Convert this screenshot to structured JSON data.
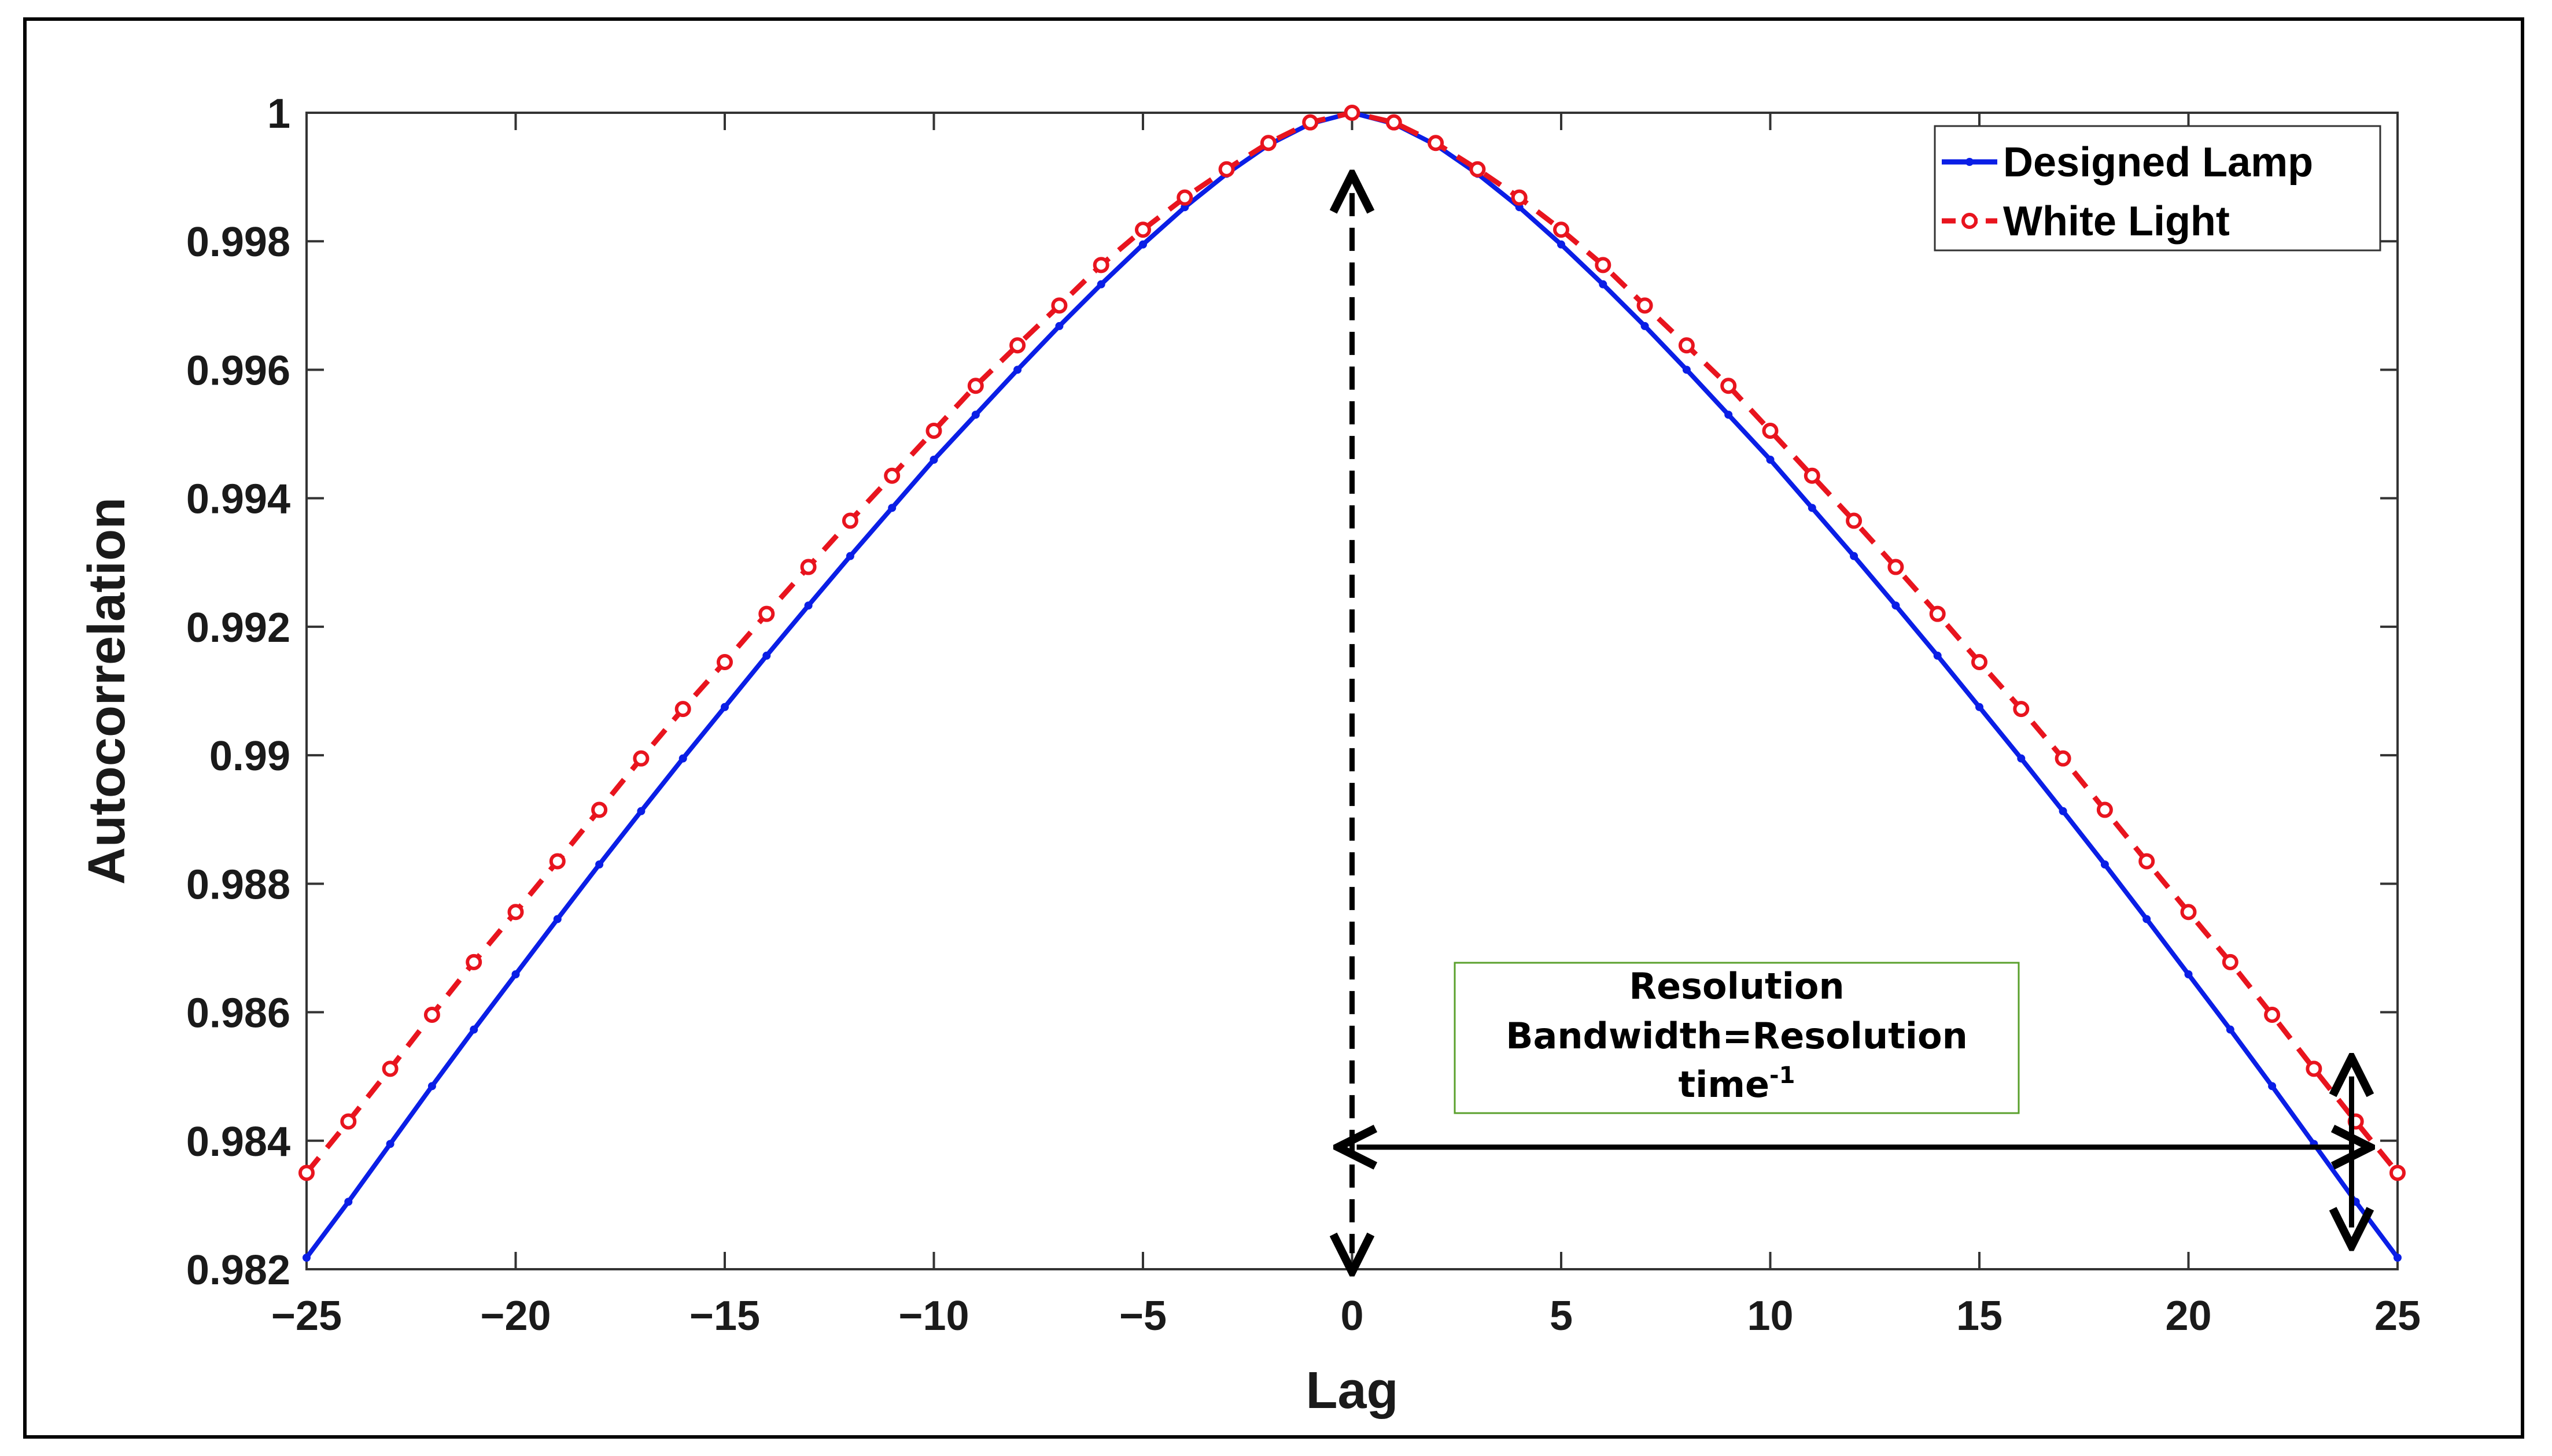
{
  "chart_data": {
    "type": "line",
    "title": "",
    "xlabel": "Lag",
    "ylabel": "Autocorrelation",
    "xlim": [
      -25,
      25
    ],
    "ylim": [
      0.982,
      1
    ],
    "xticks": [
      -25,
      -20,
      -15,
      -10,
      -5,
      0,
      5,
      10,
      15,
      20,
      25
    ],
    "xtick_labels": [
      "−25",
      "−20",
      "−15",
      "−10",
      "−5",
      "0",
      "5",
      "10",
      "15",
      "20",
      "25"
    ],
    "yticks": [
      0.982,
      0.984,
      0.986,
      0.988,
      0.99,
      0.992,
      0.994,
      0.996,
      0.998,
      1
    ],
    "ytick_labels": [
      "0.982",
      "0.984",
      "0.986",
      "0.988",
      "0.99",
      "0.992",
      "0.994",
      "0.996",
      "0.998",
      "1"
    ],
    "grid": false,
    "legend_position": "top-right",
    "series": [
      {
        "name": "Designed Lamp",
        "color": "#0a1ee6",
        "style": "solid",
        "marker": "dot",
        "x": [
          -25,
          -24,
          -23,
          -22,
          -21,
          -20,
          -19,
          -18,
          -17,
          -16,
          -15,
          -14,
          -13,
          -12,
          -11,
          -10,
          -9,
          -8,
          -7,
          -6,
          -5,
          -4,
          -3,
          -2,
          -1,
          0,
          1,
          2,
          3,
          4,
          5,
          6,
          7,
          8,
          9,
          10,
          11,
          12,
          13,
          14,
          15,
          16,
          17,
          18,
          19,
          20,
          21,
          22,
          23,
          24,
          25
        ],
        "values": [
          0.98218,
          0.98305,
          0.98395,
          0.98485,
          0.98573,
          0.98659,
          0.98745,
          0.9883,
          0.98913,
          0.98995,
          0.99075,
          0.99155,
          0.99233,
          0.9931,
          0.99385,
          0.9946,
          0.9953,
          0.996,
          0.99668,
          0.99733,
          0.99795,
          0.99853,
          0.99905,
          0.9995,
          0.99983,
          1.0,
          0.99983,
          0.9995,
          0.99905,
          0.99853,
          0.99795,
          0.99733,
          0.99668,
          0.996,
          0.9953,
          0.9946,
          0.99385,
          0.9931,
          0.99233,
          0.99155,
          0.99075,
          0.98995,
          0.98913,
          0.9883,
          0.98745,
          0.98659,
          0.98573,
          0.98485,
          0.98395,
          0.98305,
          0.98218
        ]
      },
      {
        "name": "White Light",
        "color": "#e8141e",
        "style": "dashed",
        "marker": "circle",
        "x": [
          -25,
          -24,
          -23,
          -22,
          -21,
          -20,
          -19,
          -18,
          -17,
          -16,
          -15,
          -14,
          -13,
          -12,
          -11,
          -10,
          -9,
          -8,
          -7,
          -6,
          -5,
          -4,
          -3,
          -2,
          -1,
          0,
          1,
          2,
          3,
          4,
          5,
          6,
          7,
          8,
          9,
          10,
          11,
          12,
          13,
          14,
          15,
          16,
          17,
          18,
          19,
          20,
          21,
          22,
          23,
          24,
          25
        ],
        "values": [
          0.9835,
          0.9843,
          0.98512,
          0.98596,
          0.98678,
          0.98756,
          0.98835,
          0.98915,
          0.98995,
          0.99072,
          0.99145,
          0.9922,
          0.99293,
          0.99365,
          0.99435,
          0.99505,
          0.99575,
          0.99638,
          0.997,
          0.99763,
          0.99818,
          0.99868,
          0.99912,
          0.99953,
          0.99985,
          1.0,
          0.99985,
          0.99953,
          0.99912,
          0.99868,
          0.99818,
          0.99763,
          0.997,
          0.99638,
          0.99575,
          0.99505,
          0.99435,
          0.99365,
          0.99293,
          0.9922,
          0.99145,
          0.99072,
          0.98995,
          0.98915,
          0.98835,
          0.98756,
          0.98678,
          0.98596,
          0.98512,
          0.9843,
          0.9835
        ]
      }
    ],
    "annotations": {
      "box_lines": [
        "Resolution",
        "Bandwidth=Resolution",
        "time"
      ],
      "superscript": "-1",
      "box_border_color": "#5aa02c"
    }
  }
}
